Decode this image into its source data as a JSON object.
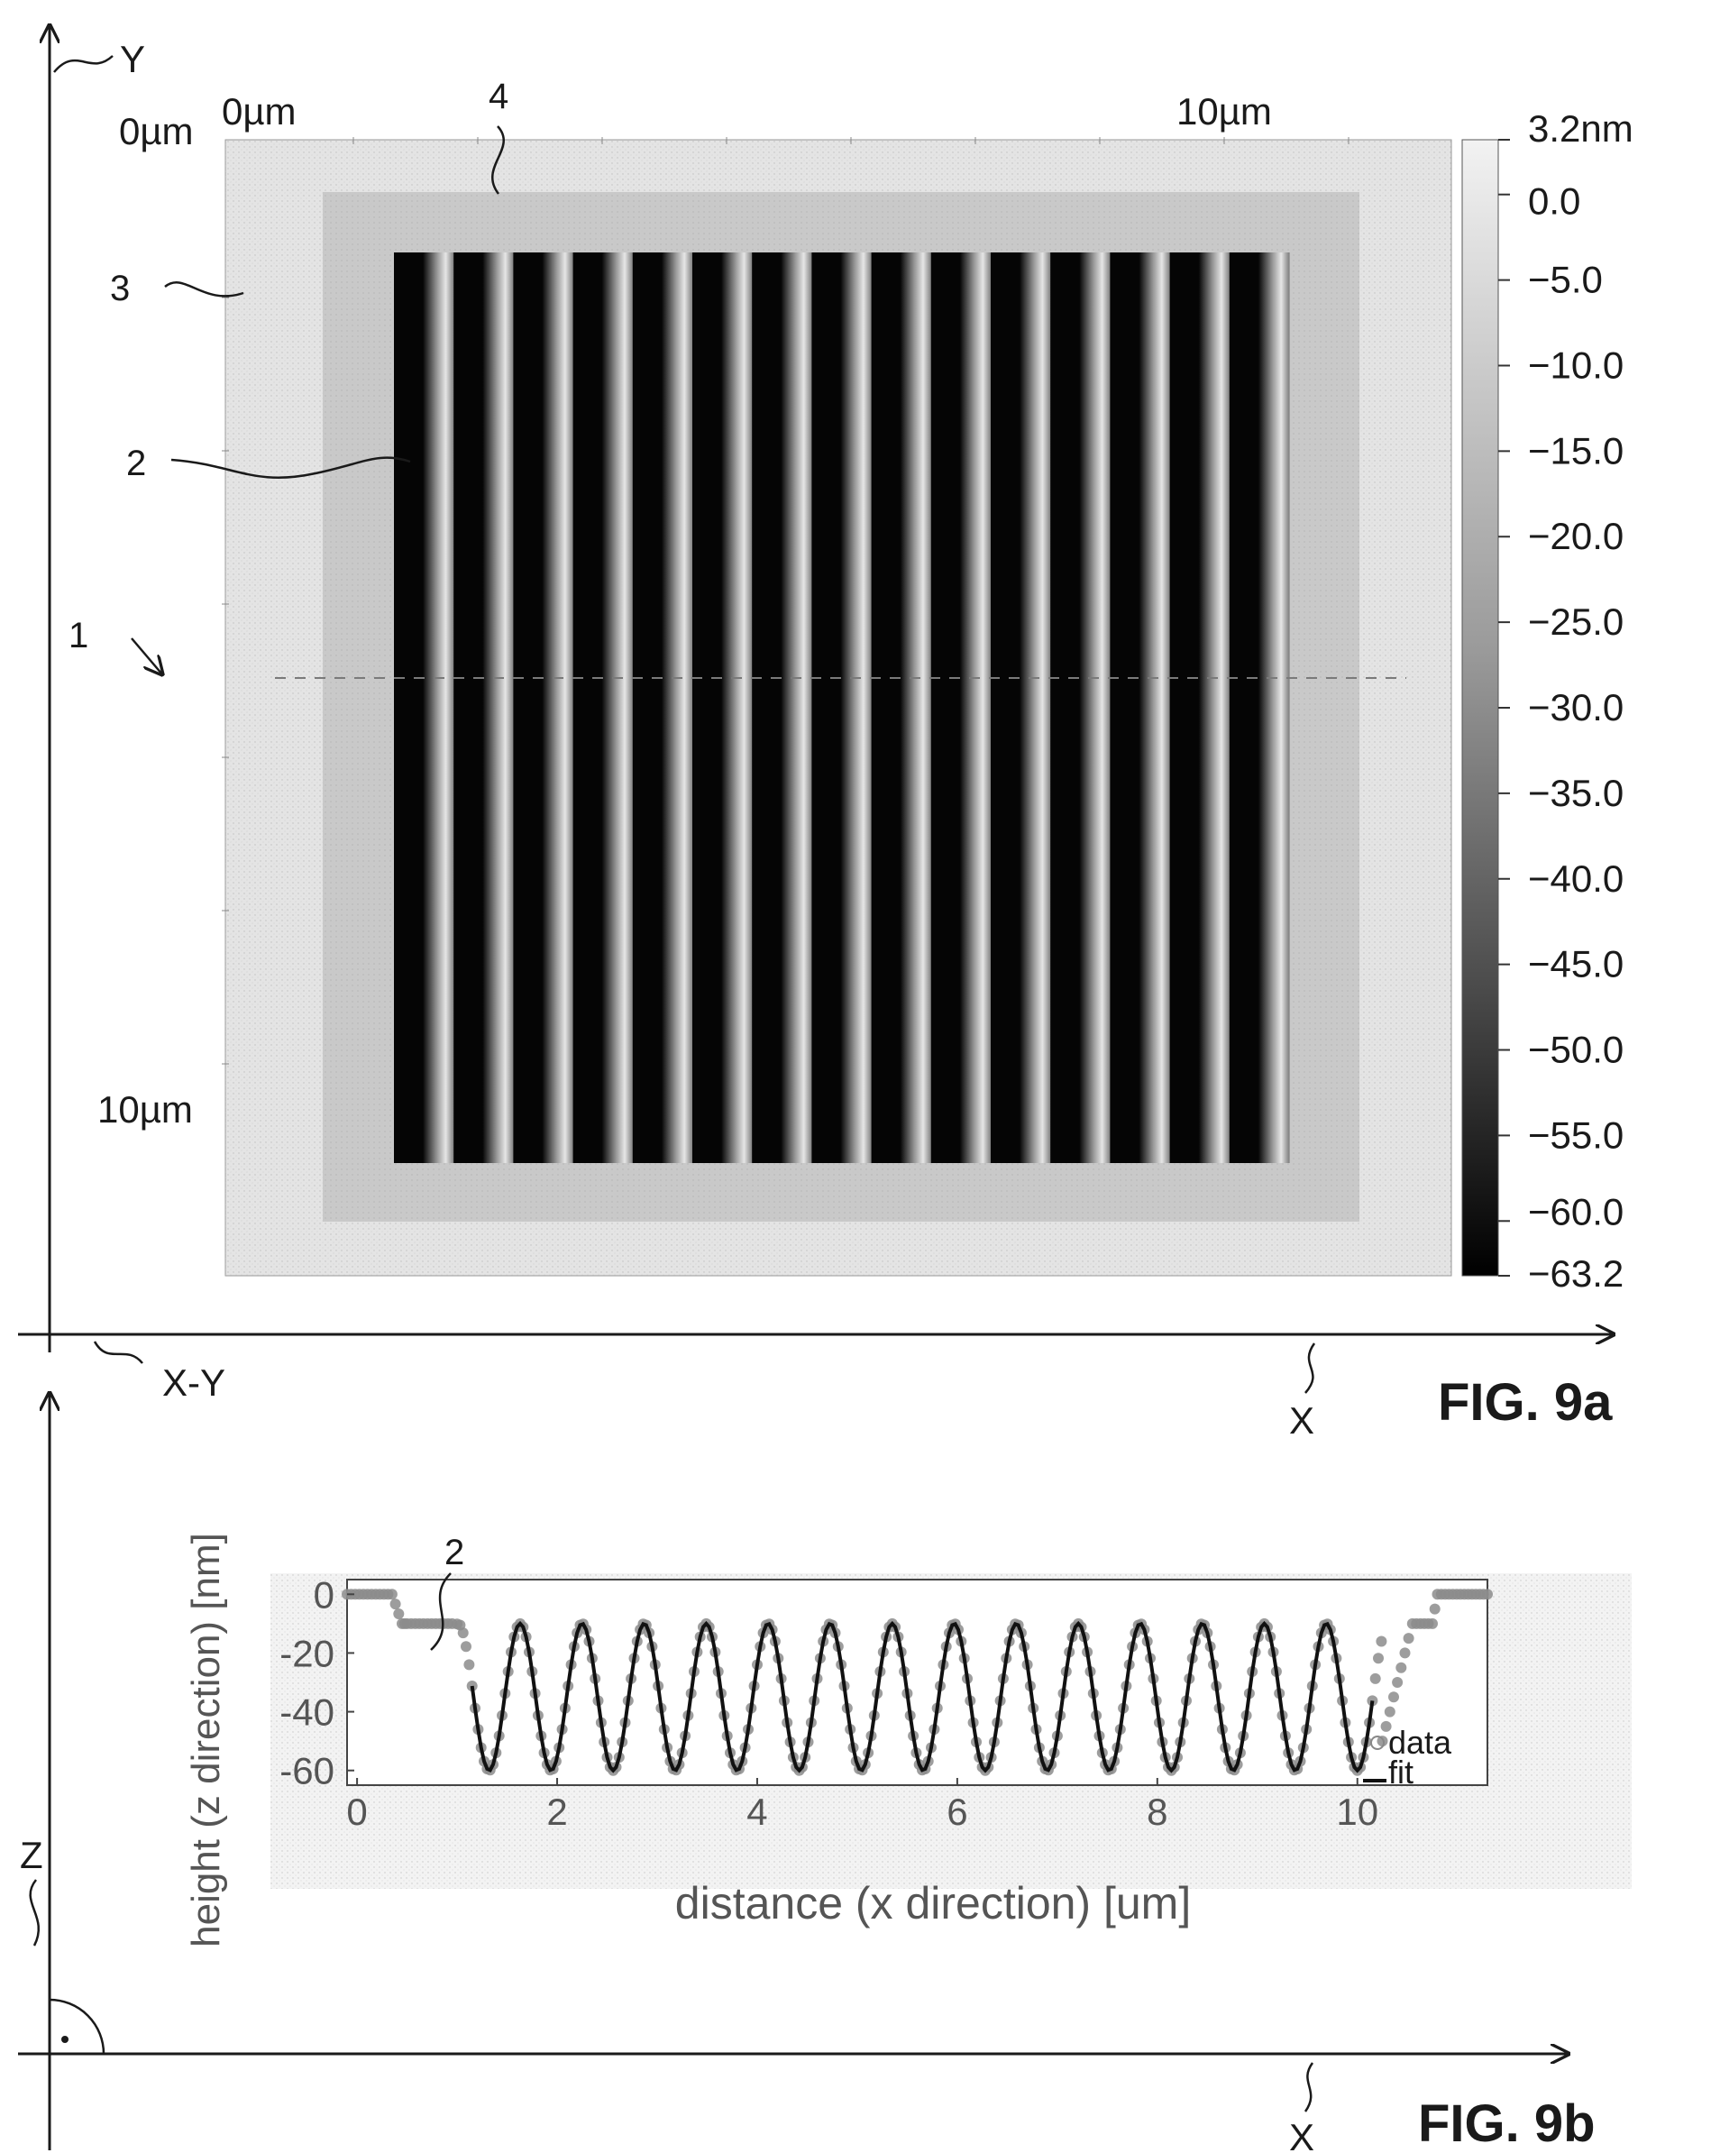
{
  "fig9a": {
    "caption": "FIG. 9a",
    "axis_y_label": "Y",
    "axis_x_label": "X",
    "axis_xy_label": "X-Y",
    "top_left_y_tick": "0µm",
    "top_left_x_tick": "0µm",
    "top_right_x_tick": "10µm",
    "bottom_left_y_tick": "10µm",
    "refs": {
      "r1": "1",
      "r2": "2",
      "r3": "3",
      "r4": "4"
    },
    "colorbar": {
      "labels": [
        "3.2nm",
        "0.0",
        "−5.0",
        "−10.0",
        "−15.0",
        "−20.0",
        "−25.0",
        "−30.0",
        "−35.0",
        "−40.0",
        "−45.0",
        "−50.0",
        "−55.0",
        "−60.0",
        "−63.2"
      ],
      "label_values": [
        3.2,
        0,
        -5,
        -10,
        -15,
        -20,
        -25,
        -30,
        -35,
        -40,
        -45,
        -50,
        -55,
        -60,
        -63.2
      ],
      "max": 3.2,
      "min": -63.2
    },
    "grating": {
      "line_count": 15,
      "substrate_color": "#d8d8d8",
      "frame_color": "#c4c4c4",
      "dark_color": "#050505",
      "light_color": "#e6e6e6"
    }
  },
  "fig9b": {
    "caption": "FIG. 9b",
    "axis_z_label": "Z",
    "axis_x_label": "X",
    "ref2": "2",
    "chart_data": {
      "type": "line",
      "xlabel": "distance (x direction) [um]",
      "ylabel": "height (z direction) [nm]",
      "xlim": [
        -0.1,
        11.3
      ],
      "ylim": [
        -65,
        5
      ],
      "x_ticks": [
        0,
        2,
        4,
        6,
        8,
        10
      ],
      "y_ticks": [
        0,
        -20,
        -40,
        -60
      ],
      "legend": {
        "position": "bottom-right",
        "entries": [
          "data",
          "fit"
        ]
      },
      "series": [
        {
          "name": "data",
          "style": "markers",
          "color": "#8c8c8c",
          "segments": [
            {
              "x": [
                -0.1,
                0.35,
                0.45,
                0.5,
                0.95
              ],
              "y": [
                0,
                0,
                -10,
                -10,
                -10
              ]
            },
            {
              "profile": "cosine",
              "x_start": 1.0,
              "x_end": 10.25,
              "period": 0.62,
              "center": -35,
              "amplitude": 25,
              "first_min_x": 1.32
            },
            {
              "x": [
                10.25,
                10.55,
                10.75,
                10.8,
                11.3
              ],
              "y": [
                -50,
                -10,
                -10,
                0,
                0
              ]
            }
          ]
        },
        {
          "name": "fit",
          "style": "line",
          "color": "#111111",
          "profile": "cosine",
          "x_start": 1.15,
          "x_end": 10.15,
          "period": 0.62,
          "center": -35,
          "amplitude": 25,
          "first_min_x": 1.32
        }
      ]
    }
  }
}
